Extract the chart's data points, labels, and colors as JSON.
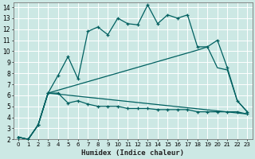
{
  "xlabel": "Humidex (Indice chaleur)",
  "bg_color": "#cce8e4",
  "grid_color": "#ffffff",
  "line_color": "#006060",
  "xlim": [
    -0.5,
    23.5
  ],
  "ylim": [
    2,
    14.4
  ],
  "xtick_labels": [
    "0",
    "1",
    "2",
    "3",
    "4",
    "5",
    "6",
    "7",
    "8",
    "9",
    "10",
    "11",
    "12",
    "13",
    "14",
    "15",
    "16",
    "17",
    "18",
    "19",
    "20",
    "21",
    "22",
    "23"
  ],
  "xtick_vals": [
    0,
    1,
    2,
    3,
    4,
    5,
    6,
    7,
    8,
    9,
    10,
    11,
    12,
    13,
    14,
    15,
    16,
    17,
    18,
    19,
    20,
    21,
    22,
    23
  ],
  "ytick_vals": [
    2,
    3,
    4,
    5,
    6,
    7,
    8,
    9,
    10,
    11,
    12,
    13,
    14
  ],
  "line1_x": [
    0,
    1,
    2,
    3,
    4,
    5,
    6,
    7,
    8,
    9,
    10,
    11,
    12,
    13,
    14,
    15,
    16,
    17,
    18,
    19,
    20,
    21,
    22,
    23
  ],
  "line1_y": [
    2.2,
    2.0,
    3.3,
    6.2,
    7.8,
    9.5,
    7.5,
    11.8,
    12.2,
    11.5,
    13.0,
    12.5,
    12.4,
    14.2,
    12.5,
    13.3,
    13.0,
    13.3,
    10.4,
    10.4,
    11.0,
    8.5,
    5.5,
    4.5
  ],
  "line2_x": [
    0,
    1,
    2,
    3,
    4,
    5,
    6,
    7,
    8,
    9,
    10,
    11,
    12,
    13,
    14,
    15,
    16,
    17,
    18,
    19,
    20,
    21,
    22,
    23
  ],
  "line2_y": [
    2.2,
    2.0,
    3.3,
    6.2,
    6.2,
    5.3,
    5.5,
    5.2,
    5.0,
    5.0,
    5.0,
    4.8,
    4.8,
    4.8,
    4.7,
    4.7,
    4.7,
    4.7,
    4.5,
    4.5,
    4.5,
    4.5,
    4.5,
    4.3
  ],
  "line3_x": [
    0,
    1,
    2,
    3,
    23
  ],
  "line3_y": [
    2.2,
    2.0,
    3.3,
    6.2,
    4.3
  ],
  "line4_x": [
    0,
    1,
    2,
    3,
    18,
    19,
    20,
    21,
    22,
    23
  ],
  "line4_y": [
    2.2,
    2.0,
    3.3,
    6.2,
    10.1,
    10.4,
    8.5,
    8.3,
    5.5,
    4.5
  ]
}
